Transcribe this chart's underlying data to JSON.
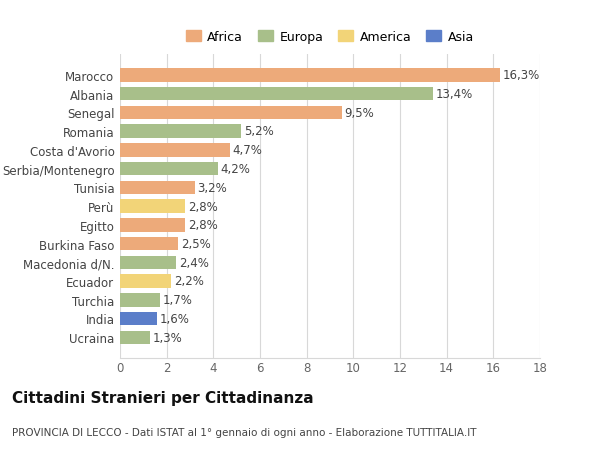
{
  "categories": [
    "Marocco",
    "Albania",
    "Senegal",
    "Romania",
    "Costa d'Avorio",
    "Serbia/Montenegro",
    "Tunisia",
    "Perù",
    "Egitto",
    "Burkina Faso",
    "Macedonia d/N.",
    "Ecuador",
    "Turchia",
    "India",
    "Ucraina"
  ],
  "values": [
    16.3,
    13.4,
    9.5,
    5.2,
    4.7,
    4.2,
    3.2,
    2.8,
    2.8,
    2.5,
    2.4,
    2.2,
    1.7,
    1.6,
    1.3
  ],
  "labels": [
    "16,3%",
    "13,4%",
    "9,5%",
    "5,2%",
    "4,7%",
    "4,2%",
    "3,2%",
    "2,8%",
    "2,8%",
    "2,5%",
    "2,4%",
    "2,2%",
    "1,7%",
    "1,6%",
    "1,3%"
  ],
  "continents": [
    "Africa",
    "Europa",
    "Africa",
    "Europa",
    "Africa",
    "Europa",
    "Africa",
    "America",
    "Africa",
    "Africa",
    "Europa",
    "America",
    "Europa",
    "Asia",
    "Europa"
  ],
  "continent_colors": {
    "Africa": "#EDAA7A",
    "Europa": "#A8BF8A",
    "America": "#F2D478",
    "Asia": "#5B7EC9"
  },
  "legend_order": [
    "Africa",
    "Europa",
    "America",
    "Asia"
  ],
  "xlim": [
    0,
    18
  ],
  "xticks": [
    0,
    2,
    4,
    6,
    8,
    10,
    12,
    14,
    16,
    18
  ],
  "title": "Cittadini Stranieri per Cittadinanza",
  "subtitle": "PROVINCIA DI LECCO - Dati ISTAT al 1° gennaio di ogni anno - Elaborazione TUTTITALIA.IT",
  "background_color": "#ffffff",
  "grid_color": "#d8d8d8",
  "bar_height": 0.72,
  "label_fontsize": 8.5,
  "tick_fontsize": 8.5,
  "ytick_fontsize": 8.5,
  "title_fontsize": 11,
  "subtitle_fontsize": 7.5
}
